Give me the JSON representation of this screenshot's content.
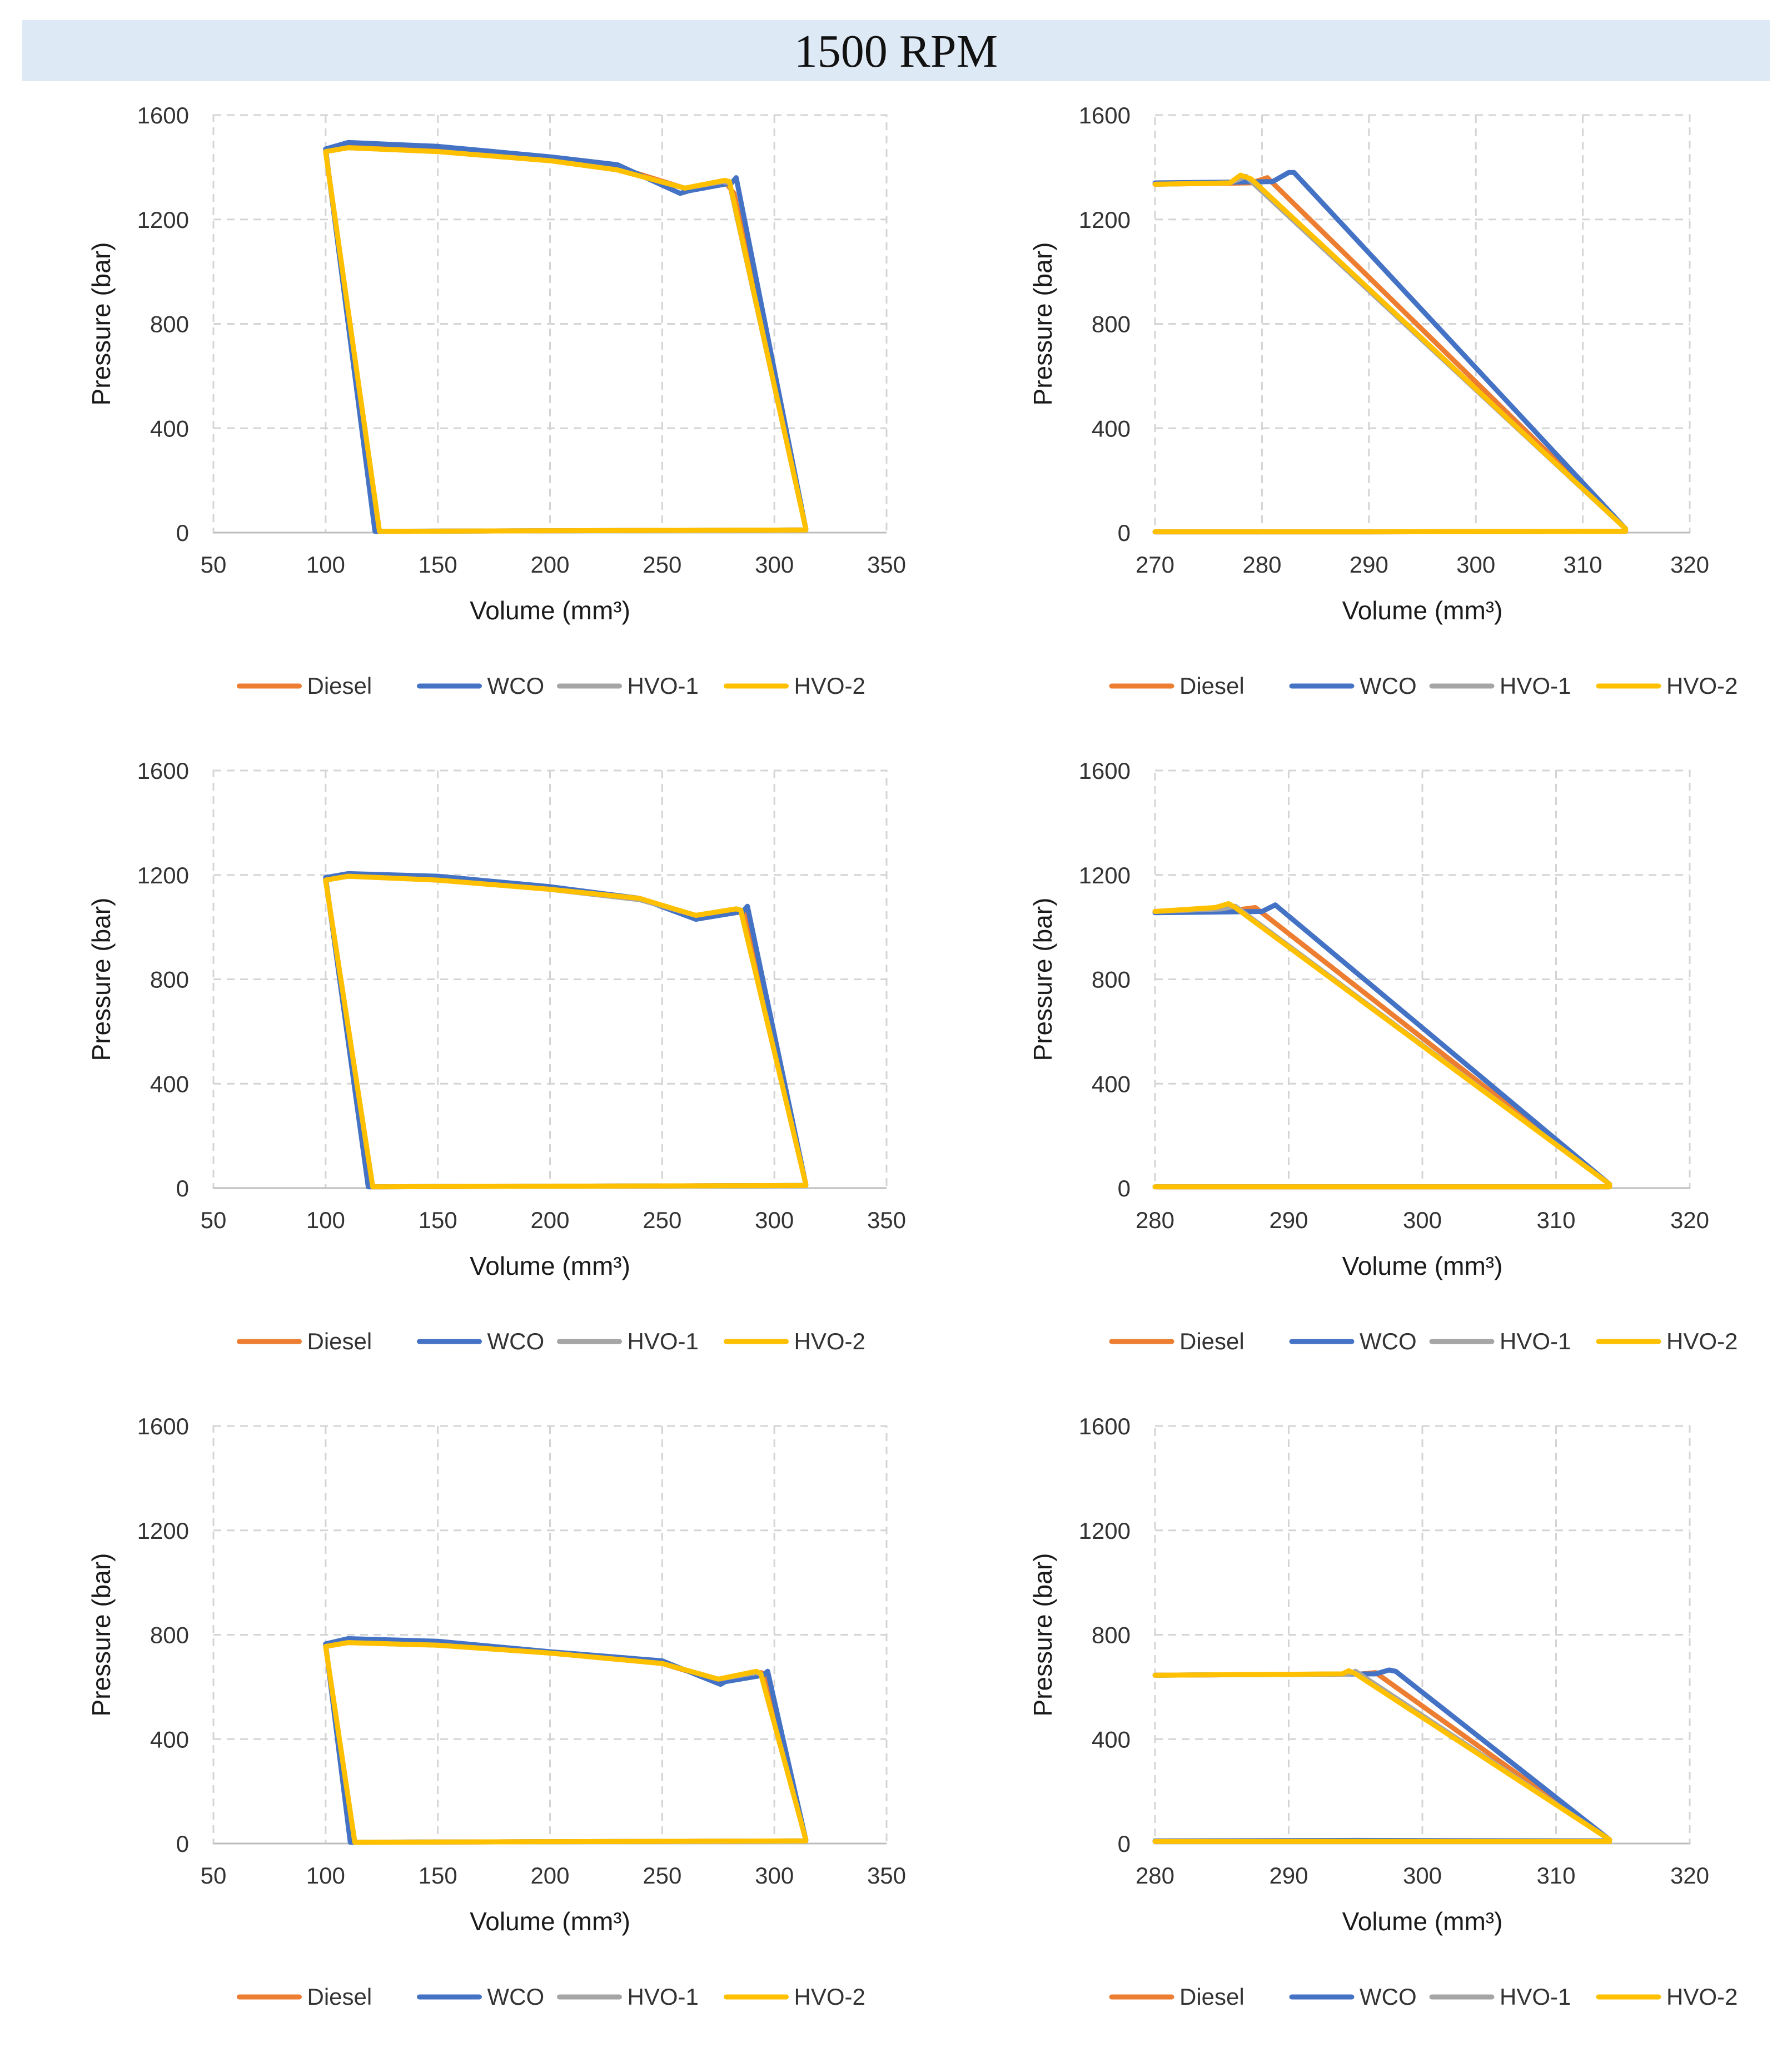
{
  "figure_title": "1500 RPM",
  "colors": {
    "title_band": "#dde9f5"
  },
  "legend": [
    {
      "name": "Diesel",
      "color": "#ed7d31"
    },
    {
      "name": "WCO",
      "color": "#4472c4"
    },
    {
      "name": "HVO-1",
      "color": "#a5a5a5"
    },
    {
      "name": "HVO-2",
      "color": "#ffc000"
    }
  ],
  "chart_data": [
    {
      "type": "line",
      "xlabel": "Volume (mm³)",
      "ylabel": "Pressure (bar)",
      "xlim": [
        50,
        350
      ],
      "xticks": [
        50,
        100,
        150,
        200,
        250,
        300,
        350
      ],
      "ylim": [
        0,
        1600
      ],
      "yticks": [
        0,
        400,
        800,
        1200,
        1600
      ],
      "grid": true,
      "legend_position": "bottom",
      "series": [
        {
          "name": "Diesel",
          "x": [
            123,
            314,
            314,
            282,
            278,
            260,
            230,
            200,
            150,
            110,
            100,
            123
          ],
          "y": [
            5,
            10,
            15,
            1300,
            1345,
            1320,
            1400,
            1430,
            1465,
            1485,
            1465,
            5
          ]
        },
        {
          "name": "WCO",
          "x": [
            122,
            314,
            314,
            283,
            281,
            262,
            258,
            230,
            200,
            150,
            110,
            100,
            122
          ],
          "y": [
            5,
            10,
            15,
            1360,
            1340,
            1310,
            1300,
            1410,
            1440,
            1480,
            1495,
            1470,
            5
          ]
        },
        {
          "name": "HVO-1",
          "x": [
            124,
            314,
            314,
            280,
            277,
            260,
            230,
            200,
            150,
            110,
            100,
            124
          ],
          "y": [
            5,
            10,
            15,
            1340,
            1345,
            1320,
            1390,
            1425,
            1460,
            1475,
            1460,
            5
          ]
        },
        {
          "name": "HVO-2",
          "x": [
            124,
            314,
            314,
            280,
            278,
            260,
            230,
            200,
            150,
            110,
            100,
            124
          ],
          "y": [
            5,
            10,
            15,
            1345,
            1350,
            1320,
            1390,
            1425,
            1460,
            1475,
            1460,
            5
          ]
        }
      ]
    },
    {
      "type": "line",
      "xlabel": "Volume (mm³)",
      "ylabel": "Pressure (bar)",
      "xlim": [
        270,
        320
      ],
      "xticks": [
        270,
        280,
        290,
        300,
        310,
        320
      ],
      "ylim": [
        0,
        1600
      ],
      "yticks": [
        0,
        400,
        800,
        1200,
        1600
      ],
      "grid": true,
      "legend_position": "bottom",
      "series": [
        {
          "name": "Diesel",
          "x": [
            270,
            279,
            280.5,
            314,
            314,
            290,
            270
          ],
          "y": [
            1335,
            1340,
            1360,
            15,
            5,
            3,
            3
          ]
        },
        {
          "name": "WCO",
          "x": [
            270,
            281,
            282.5,
            283,
            314,
            314,
            290,
            270
          ],
          "y": [
            1340,
            1345,
            1380,
            1380,
            15,
            5,
            3,
            3
          ]
        },
        {
          "name": "HVO-1",
          "x": [
            270,
            277,
            278.5,
            314,
            314,
            290,
            270
          ],
          "y": [
            1335,
            1340,
            1365,
            15,
            5,
            3,
            3
          ]
        },
        {
          "name": "HVO-2",
          "x": [
            270,
            277,
            278,
            279,
            314,
            314,
            290,
            270
          ],
          "y": [
            1335,
            1340,
            1370,
            1355,
            15,
            5,
            3,
            3
          ]
        }
      ]
    },
    {
      "type": "line",
      "xlabel": "Volume (mm³)",
      "ylabel": "Pressure (bar)",
      "xlim": [
        50,
        350
      ],
      "xticks": [
        50,
        100,
        150,
        200,
        250,
        300,
        350
      ],
      "ylim": [
        0,
        1600
      ],
      "yticks": [
        0,
        400,
        800,
        1200,
        1600
      ],
      "grid": true,
      "legend_position": "bottom",
      "series": [
        {
          "name": "Diesel",
          "x": [
            120,
            314,
            314,
            287,
            285,
            265,
            240,
            200,
            150,
            110,
            100,
            120
          ],
          "y": [
            5,
            10,
            15,
            1060,
            1065,
            1040,
            1110,
            1150,
            1185,
            1200,
            1185,
            5
          ]
        },
        {
          "name": "WCO",
          "x": [
            119,
            314,
            314,
            288,
            286,
            265,
            240,
            200,
            150,
            110,
            100,
            119
          ],
          "y": [
            5,
            10,
            15,
            1080,
            1060,
            1030,
            1110,
            1155,
            1195,
            1205,
            1190,
            5
          ]
        },
        {
          "name": "HVO-1",
          "x": [
            121,
            314,
            314,
            285,
            283,
            265,
            240,
            200,
            150,
            110,
            100,
            121
          ],
          "y": [
            5,
            10,
            15,
            1065,
            1070,
            1045,
            1105,
            1145,
            1180,
            1195,
            1180,
            5
          ]
        },
        {
          "name": "HVO-2",
          "x": [
            121,
            314,
            314,
            285,
            283,
            265,
            240,
            200,
            150,
            110,
            100,
            121
          ],
          "y": [
            5,
            10,
            15,
            1065,
            1070,
            1045,
            1110,
            1145,
            1180,
            1195,
            1180,
            5
          ]
        }
      ]
    },
    {
      "type": "line",
      "xlabel": "Volume (mm³)",
      "ylabel": "Pressure (bar)",
      "xlim": [
        280,
        320
      ],
      "xticks": [
        280,
        290,
        300,
        310,
        320
      ],
      "ylim": [
        0,
        1600
      ],
      "yticks": [
        0,
        400,
        800,
        1200,
        1600
      ],
      "grid": true,
      "legend_position": "bottom",
      "series": [
        {
          "name": "Diesel",
          "x": [
            280,
            286,
            287.5,
            314,
            314,
            295,
            280
          ],
          "y": [
            1060,
            1065,
            1075,
            15,
            5,
            5,
            5
          ]
        },
        {
          "name": "WCO",
          "x": [
            280,
            288,
            289,
            314,
            314,
            295,
            280
          ],
          "y": [
            1055,
            1060,
            1085,
            15,
            5,
            5,
            5
          ]
        },
        {
          "name": "HVO-1",
          "x": [
            280,
            285,
            286,
            314,
            314,
            295,
            280
          ],
          "y": [
            1060,
            1070,
            1080,
            15,
            5,
            5,
            5
          ]
        },
        {
          "name": "HVO-2",
          "x": [
            280,
            284.5,
            285.5,
            286,
            314,
            314,
            295,
            280
          ],
          "y": [
            1060,
            1075,
            1090,
            1075,
            15,
            5,
            5,
            5
          ]
        }
      ]
    },
    {
      "type": "line",
      "xlabel": "Volume (mm³)",
      "ylabel": "Pressure (bar)",
      "xlim": [
        50,
        350
      ],
      "xticks": [
        50,
        100,
        150,
        200,
        250,
        300,
        350
      ],
      "ylim": [
        0,
        1600
      ],
      "yticks": [
        0,
        400,
        800,
        1200,
        1600
      ],
      "grid": true,
      "legend_position": "bottom",
      "series": [
        {
          "name": "Diesel",
          "x": [
            112,
            314,
            314,
            296,
            294,
            275,
            250,
            200,
            150,
            110,
            100,
            112
          ],
          "y": [
            5,
            10,
            15,
            650,
            655,
            625,
            690,
            730,
            765,
            775,
            760,
            5
          ]
        },
        {
          "name": "WCO",
          "x": [
            111,
            314,
            314,
            297,
            295,
            278,
            276,
            250,
            200,
            150,
            110,
            100,
            111
          ],
          "y": [
            5,
            10,
            15,
            660,
            645,
            620,
            610,
            700,
            735,
            775,
            785,
            765,
            5
          ]
        },
        {
          "name": "HVO-1",
          "x": [
            113,
            314,
            314,
            294,
            292,
            275,
            250,
            200,
            150,
            110,
            100,
            113
          ],
          "y": [
            5,
            10,
            15,
            650,
            655,
            630,
            690,
            730,
            760,
            770,
            755,
            5
          ]
        },
        {
          "name": "HVO-2",
          "x": [
            113,
            314,
            314,
            294,
            292,
            275,
            250,
            200,
            150,
            110,
            100,
            113
          ],
          "y": [
            5,
            10,
            15,
            650,
            660,
            630,
            690,
            730,
            760,
            770,
            755,
            5
          ]
        }
      ]
    },
    {
      "type": "line",
      "xlabel": "Volume (mm³)",
      "ylabel": "Pressure (bar)",
      "xlim": [
        280,
        320
      ],
      "xticks": [
        280,
        290,
        300,
        310,
        320
      ],
      "ylim": [
        0,
        1600
      ],
      "yticks": [
        0,
        400,
        800,
        1200,
        1600
      ],
      "grid": true,
      "legend_position": "bottom",
      "series": [
        {
          "name": "Diesel",
          "x": [
            280,
            295.5,
            296.5,
            314,
            314,
            295,
            280
          ],
          "y": [
            645,
            650,
            655,
            15,
            8,
            8,
            8
          ]
        },
        {
          "name": "WCO",
          "x": [
            280,
            296.5,
            297.5,
            298,
            314,
            314,
            295,
            280
          ],
          "y": [
            645,
            650,
            665,
            660,
            15,
            10,
            12,
            10
          ]
        },
        {
          "name": "HVO-1",
          "x": [
            280,
            294.5,
            295,
            314,
            314,
            295,
            280
          ],
          "y": [
            645,
            650,
            660,
            15,
            8,
            8,
            8
          ]
        },
        {
          "name": "HVO-2",
          "x": [
            280,
            294,
            294.5,
            295,
            314,
            314,
            295,
            280
          ],
          "y": [
            645,
            650,
            662,
            650,
            15,
            8,
            8,
            8
          ]
        }
      ]
    }
  ]
}
